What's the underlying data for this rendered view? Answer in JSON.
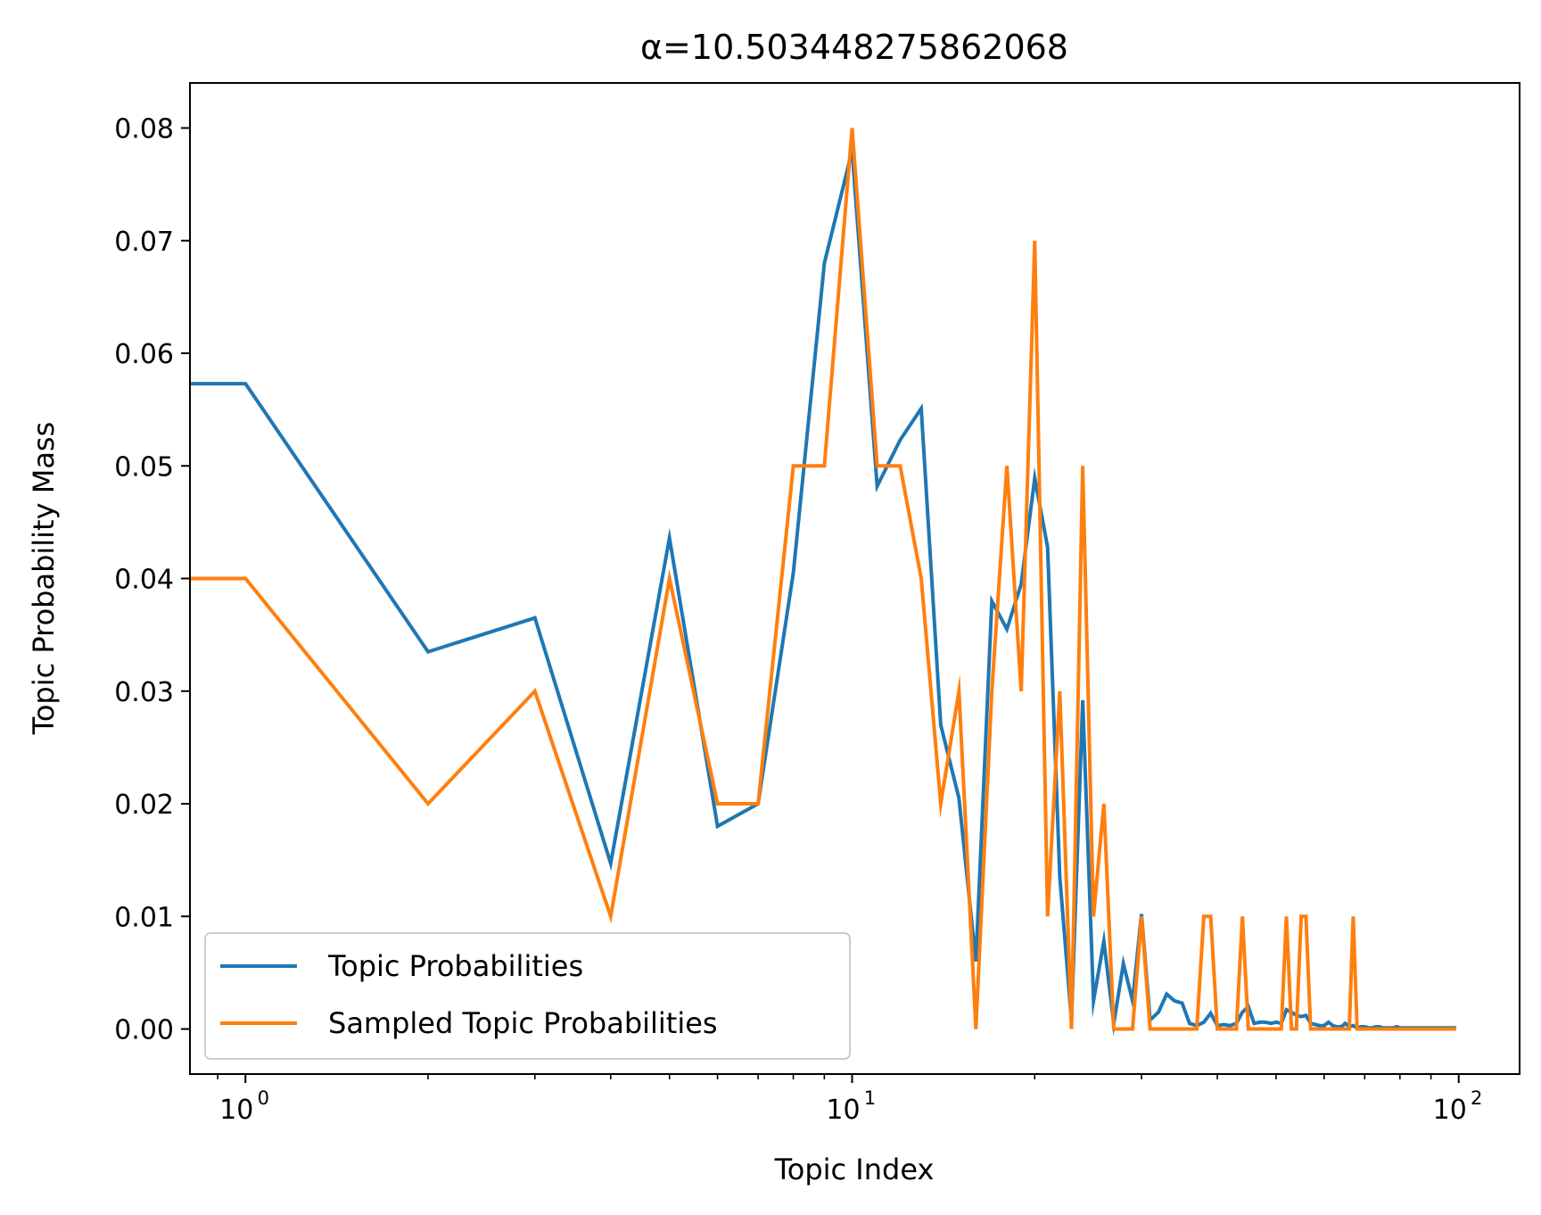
{
  "chart_data": {
    "type": "line",
    "title": "α=10.503448275862068",
    "xlabel": "Topic Index",
    "ylabel": "Topic Probability Mass",
    "xscale": "log",
    "xlim": [
      0.81,
      126
    ],
    "ylim": [
      -0.004,
      0.084
    ],
    "xticks": [
      {
        "value": 1,
        "base": "10",
        "exp": "0"
      },
      {
        "value": 10,
        "base": "10",
        "exp": "1"
      },
      {
        "value": 100,
        "base": "10",
        "exp": "2"
      }
    ],
    "yticks": [
      {
        "value": 0.0,
        "label": "0.00"
      },
      {
        "value": 0.01,
        "label": "0.01"
      },
      {
        "value": 0.02,
        "label": "0.02"
      },
      {
        "value": 0.03,
        "label": "0.03"
      },
      {
        "value": 0.04,
        "label": "0.04"
      },
      {
        "value": 0.05,
        "label": "0.05"
      },
      {
        "value": 0.06,
        "label": "0.06"
      },
      {
        "value": 0.07,
        "label": "0.07"
      },
      {
        "value": 0.08,
        "label": "0.08"
      }
    ],
    "grid": false,
    "legend_position": "lower-left",
    "series": [
      {
        "name": "Topic Probabilities",
        "color": "#1f77b4",
        "x": [
          0,
          1,
          2,
          3,
          4,
          5,
          6,
          7,
          8,
          9,
          10,
          11,
          12,
          13,
          14,
          15,
          16,
          17,
          18,
          19,
          20,
          21,
          22,
          23,
          24,
          25,
          26,
          27,
          28,
          29,
          30,
          31,
          32,
          33,
          34,
          35,
          36,
          37,
          38,
          39,
          40,
          41,
          42,
          43,
          44,
          45,
          46,
          47,
          48,
          49,
          50,
          51,
          52,
          53,
          54,
          55,
          56,
          57,
          58,
          59,
          60,
          61,
          62,
          63,
          64,
          65,
          66,
          67,
          68,
          69,
          70,
          71,
          72,
          73,
          74,
          75,
          76,
          77,
          78,
          79,
          80,
          81,
          82,
          83,
          84,
          85,
          86,
          87,
          88,
          89,
          90,
          91,
          92,
          93,
          94,
          95,
          96,
          97,
          98,
          99
        ],
        "y": [
          0.0573,
          0.0573,
          0.0335,
          0.0365,
          0.0147,
          0.0436,
          0.018,
          0.02,
          0.0405,
          0.068,
          0.078,
          0.0482,
          0.0523,
          0.0551,
          0.027,
          0.0205,
          0.006,
          0.038,
          0.0355,
          0.0395,
          0.0489,
          0.0428,
          0.0135,
          0.0008,
          0.0292,
          0.0025,
          0.0078,
          0.0005,
          0.0058,
          0.0025,
          0.0102,
          0.0008,
          0.0015,
          0.0031,
          0.0025,
          0.0023,
          0.0005,
          0.0003,
          0.0006,
          0.0014,
          0.0003,
          0.0004,
          0.0003,
          0.0005,
          0.0015,
          0.002,
          0.0005,
          0.0006,
          0.0006,
          0.0005,
          0.0006,
          0.0005,
          0.0017,
          0.0015,
          0.0012,
          0.0011,
          0.0012,
          0.0005,
          0.0004,
          0.0003,
          0.0003,
          0.0006,
          0.0003,
          0.0002,
          0.0002,
          0.0005,
          0.0002,
          0.0003,
          0.0001,
          0.0002,
          0.0002,
          0.0001,
          0.0001,
          0.0002,
          0.0002,
          0.0001,
          0.0001,
          0.0001,
          0.0001,
          0.0002,
          0.0001,
          0.0001,
          0.0001,
          0.0001,
          0.0001,
          0.0001,
          0.0001,
          0.0001,
          0.0001,
          0.0001,
          0.0001,
          0.0001,
          0.0001,
          0.0001,
          0.0001,
          0.0001,
          0.0001,
          0.0001,
          0.0001,
          0.0001
        ]
      },
      {
        "name": "Sampled Topic Probabilities",
        "color": "#ff7f0e",
        "x": [
          0,
          1,
          2,
          3,
          4,
          5,
          6,
          7,
          8,
          9,
          10,
          11,
          12,
          13,
          14,
          15,
          16,
          17,
          18,
          19,
          20,
          21,
          22,
          23,
          24,
          25,
          26,
          27,
          28,
          29,
          30,
          31,
          32,
          33,
          34,
          35,
          36,
          37,
          38,
          39,
          40,
          41,
          42,
          43,
          44,
          45,
          46,
          47,
          48,
          49,
          50,
          51,
          52,
          53,
          54,
          55,
          56,
          57,
          58,
          59,
          60,
          61,
          62,
          63,
          64,
          65,
          66,
          67,
          68,
          69,
          70,
          71,
          72,
          73,
          74,
          75,
          76,
          77,
          78,
          79,
          80,
          81,
          82,
          83,
          84,
          85,
          86,
          87,
          88,
          89,
          90,
          91,
          92,
          93,
          94,
          95,
          96,
          97,
          98,
          99
        ],
        "y": [
          0.04,
          0.04,
          0.02,
          0.03,
          0.01,
          0.04,
          0.02,
          0.02,
          0.05,
          0.05,
          0.08,
          0.05,
          0.05,
          0.04,
          0.02,
          0.03,
          0.0,
          0.03,
          0.05,
          0.03,
          0.07,
          0.01,
          0.03,
          0.0,
          0.05,
          0.01,
          0.02,
          0.0,
          0.0,
          0.0,
          0.01,
          0.0,
          0.0,
          0.0,
          0.0,
          0.0,
          0.0,
          0.0,
          0.01,
          0.01,
          0.0,
          0.0,
          0.0,
          0.0,
          0.01,
          0.0,
          0.0,
          0.0,
          0.0,
          0.0,
          0.0,
          0.0,
          0.01,
          0.0,
          0.0,
          0.01,
          0.01,
          0.0,
          0.0,
          0.0,
          0.0,
          0.0,
          0.0,
          0.0,
          0.0,
          0.0,
          0.0,
          0.01,
          0.0,
          0.0,
          0.0,
          0.0,
          0.0,
          0.0,
          0.0,
          0.0,
          0.0,
          0.0,
          0.0,
          0.0,
          0.0,
          0.0,
          0.0,
          0.0,
          0.0,
          0.0,
          0.0,
          0.0,
          0.0,
          0.0,
          0.0,
          0.0,
          0.0,
          0.0,
          0.0,
          0.0,
          0.0,
          0.0,
          0.0,
          0.0
        ]
      }
    ]
  }
}
